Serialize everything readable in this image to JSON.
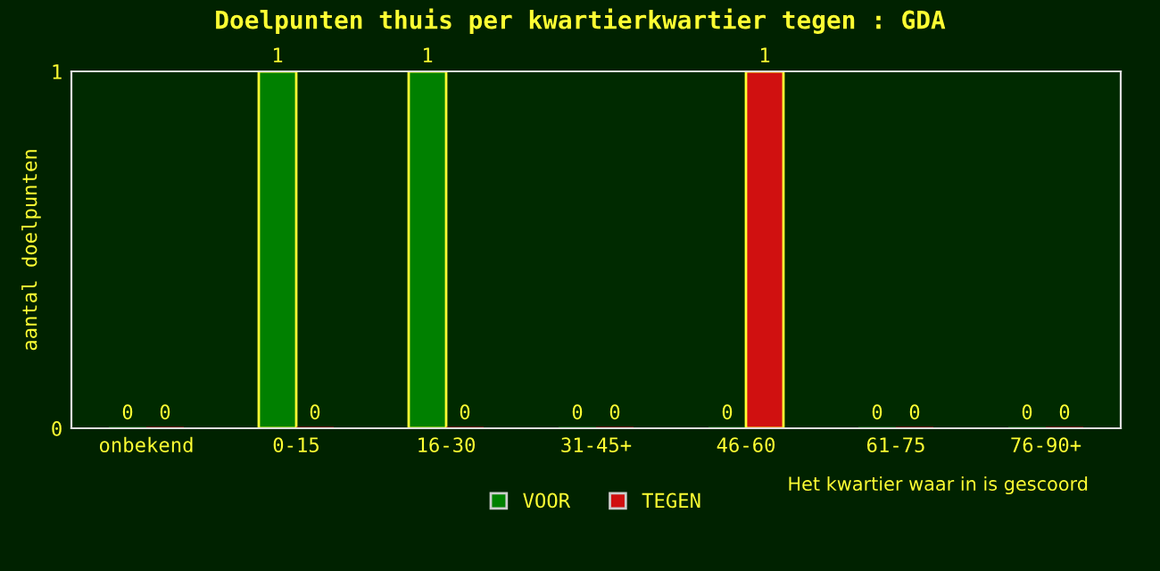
{
  "chart_data": {
    "type": "bar",
    "title": "Doelpunten thuis per kwartierkwartier tegen : GDA",
    "xlabel": "Het kwartier waar in is gescoord",
    "ylabel": "aantal doelpunten",
    "categories": [
      "onbekend",
      "0-15",
      "16-30",
      "31-45+",
      "46-60",
      "61-75",
      "76-90+"
    ],
    "series": [
      {
        "name": "VOOR",
        "color": "#008000",
        "values": [
          0,
          1,
          1,
          0,
          0,
          0,
          0
        ]
      },
      {
        "name": "TEGEN",
        "color": "#d01010",
        "values": [
          0,
          0,
          0,
          0,
          1,
          0,
          0
        ]
      }
    ],
    "ylim": [
      0,
      1
    ],
    "yticks": [
      0,
      1
    ],
    "grid": false,
    "legend": "bottom",
    "data_labels": true
  }
}
